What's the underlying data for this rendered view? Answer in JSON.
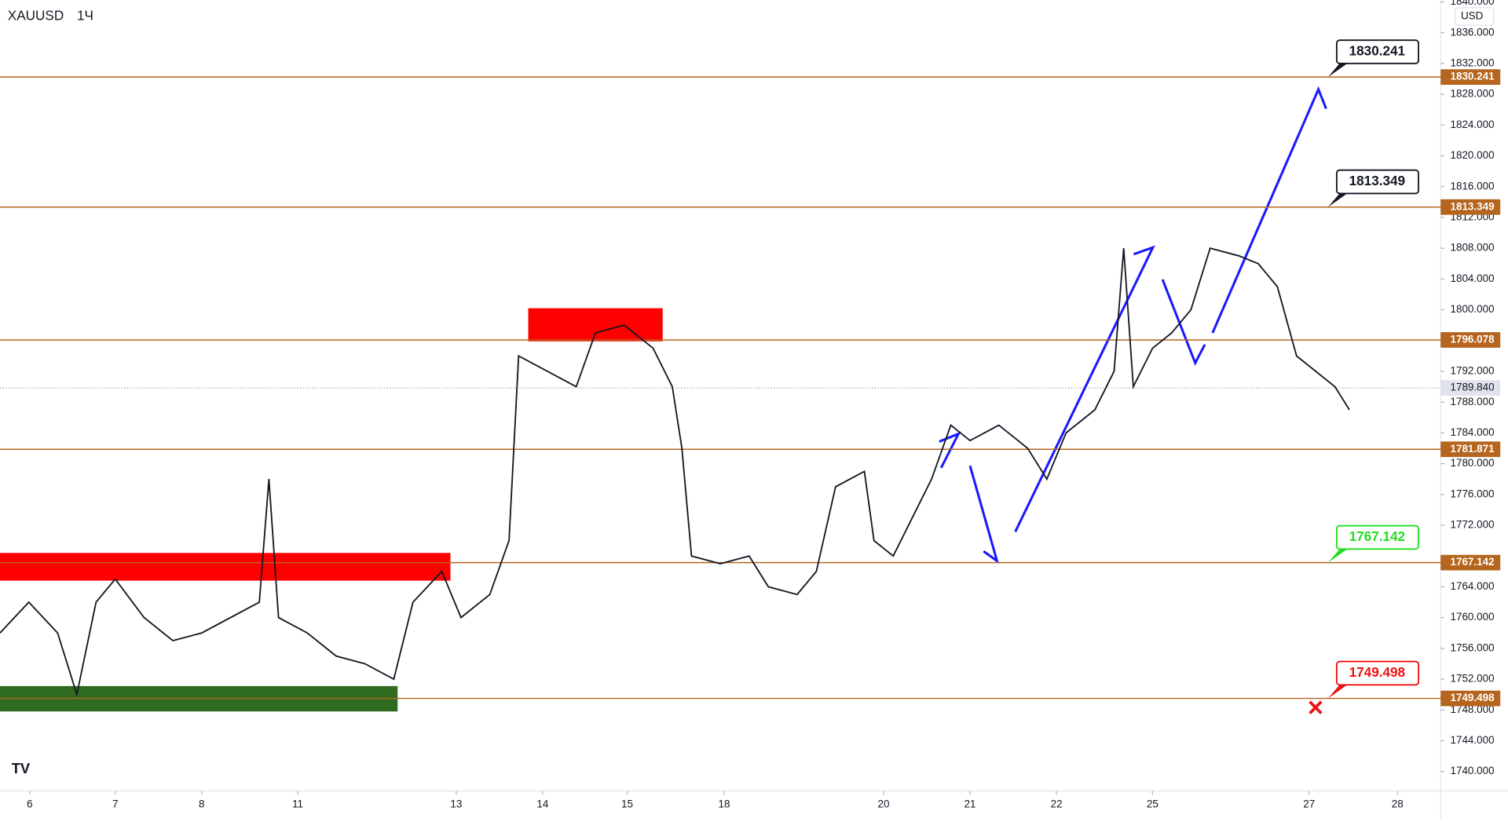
{
  "chart_data": {
    "type": "line",
    "symbol": "XAUUSD",
    "interval": "1Ч",
    "currency": "USD",
    "color": "#131722",
    "x": [
      0,
      3,
      6,
      8,
      10,
      12,
      15,
      18,
      21,
      24,
      27,
      28,
      29,
      32,
      35,
      38,
      41,
      43,
      46,
      48,
      51,
      53,
      54,
      57,
      60,
      62,
      65,
      68,
      70,
      71,
      72,
      75,
      78,
      80,
      83,
      85,
      87,
      90,
      91,
      93,
      95,
      97,
      99,
      101,
      104,
      107,
      109,
      111,
      114,
      116,
      117,
      118,
      120,
      122,
      124,
      126,
      129,
      131,
      133,
      135,
      137,
      139,
      140.5
    ],
    "values": [
      1758,
      1762,
      1758,
      1750,
      1762,
      1765,
      1760,
      1757,
      1758,
      1760,
      1762,
      1778,
      1760,
      1758,
      1755,
      1754,
      1752,
      1762,
      1766,
      1760,
      1763,
      1770,
      1794,
      1792,
      1790,
      1797,
      1798,
      1795,
      1790,
      1782,
      1768,
      1767,
      1768,
      1764,
      1763,
      1766,
      1777,
      1779,
      1770,
      1768,
      1773,
      1778,
      1785,
      1783,
      1785,
      1782,
      1778,
      1784,
      1787,
      1792,
      1808,
      1790,
      1795,
      1797,
      1800,
      1808,
      1807,
      1806,
      1803,
      1794,
      1792,
      1790,
      1787
    ],
    "xlim": [
      0,
      150
    ],
    "ylim": [
      1740,
      1840
    ],
    "xticks": [
      {
        "value": 3.1,
        "label": "6"
      },
      {
        "value": 12,
        "label": "7"
      },
      {
        "value": 21,
        "label": "8"
      },
      {
        "value": 31,
        "label": "11"
      },
      {
        "value": 47.5,
        "label": "13"
      },
      {
        "value": 56.5,
        "label": "14"
      },
      {
        "value": 65.3,
        "label": "15"
      },
      {
        "value": 75.4,
        "label": "18"
      },
      {
        "value": 92,
        "label": "20"
      },
      {
        "value": 101,
        "label": "21"
      },
      {
        "value": 110,
        "label": "22"
      },
      {
        "value": 120,
        "label": "25"
      },
      {
        "value": 136.3,
        "label": "27"
      },
      {
        "value": 145.5,
        "label": "28"
      }
    ],
    "yticks": [
      {
        "value": 1740,
        "label": "1740.000"
      },
      {
        "value": 1744,
        "label": "1744.000"
      },
      {
        "value": 1748,
        "label": "1748.000"
      },
      {
        "value": 1752,
        "label": "1752.000"
      },
      {
        "value": 1756,
        "label": "1756.000"
      },
      {
        "value": 1760,
        "label": "1760.000"
      },
      {
        "value": 1764,
        "label": "1764.000"
      },
      {
        "value": 1772,
        "label": "1772.000"
      },
      {
        "value": 1776,
        "label": "1776.000"
      },
      {
        "value": 1780,
        "label": "1780.000"
      },
      {
        "value": 1784,
        "label": "1784.000"
      },
      {
        "value": 1788,
        "label": "1788.000"
      },
      {
        "value": 1792,
        "label": "1792.000"
      },
      {
        "value": 1800,
        "label": "1800.000"
      },
      {
        "value": 1804,
        "label": "1804.000"
      },
      {
        "value": 1808,
        "label": "1808.000"
      },
      {
        "value": 1812,
        "label": "1812.000"
      },
      {
        "value": 1816,
        "label": "1816.000"
      },
      {
        "value": 1820,
        "label": "1820.000"
      },
      {
        "value": 1824,
        "label": "1824.000"
      },
      {
        "value": 1828,
        "label": "1828.000"
      },
      {
        "value": 1832,
        "label": "1832.000"
      },
      {
        "value": 1836,
        "label": "1836.000"
      },
      {
        "value": 1840,
        "label": "1840.000"
      }
    ],
    "levels": [
      {
        "value": 1830.241,
        "callout": "#131722"
      },
      {
        "value": 1813.349,
        "callout": "#131722"
      },
      {
        "value": 1796.078
      },
      {
        "value": 1781.871
      },
      {
        "value": 1767.142,
        "callout": "#22dd22"
      },
      {
        "value": 1749.498,
        "callout": "#ee1111"
      }
    ],
    "level_color": "#b5651d",
    "current_price": {
      "value": 1789.84,
      "label": "1789.840"
    },
    "zones": [
      {
        "x0": 0,
        "x1": 46.9,
        "low": 1764.8,
        "high": 1768.4,
        "color": "#ff0000"
      },
      {
        "x0": 0,
        "x1": 41.4,
        "low": 1747.8,
        "high": 1751.1,
        "color": "#2e6b1f"
      },
      {
        "x0": 55,
        "x1": 69,
        "low": 1795.9,
        "high": 1800.2,
        "color": "#ff0000"
      }
    ]
  }
}
